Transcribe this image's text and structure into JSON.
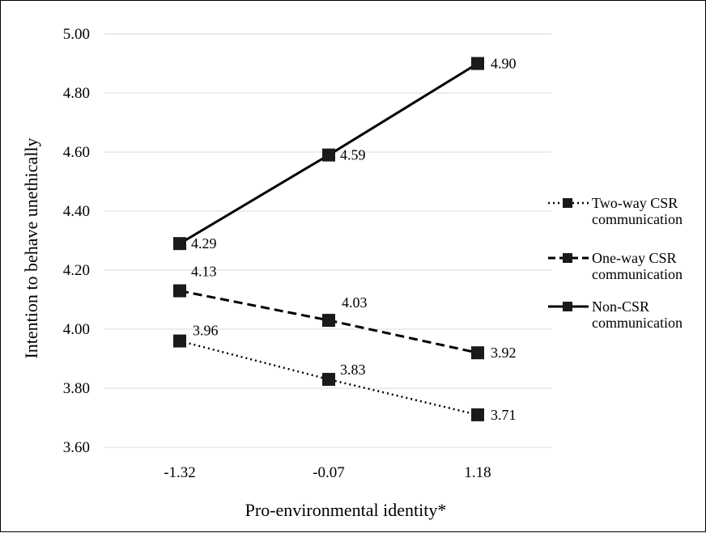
{
  "chart_data": {
    "type": "line",
    "title": "",
    "xlabel": "Pro-environmental identity*",
    "ylabel": "Intention to behave unethically",
    "x": [
      "-1.32",
      "-0.07",
      "1.18"
    ],
    "ylim": [
      3.6,
      5.0
    ],
    "yticks": [
      "3.60",
      "3.80",
      "4.00",
      "4.20",
      "4.40",
      "4.60",
      "4.80",
      "5.00"
    ],
    "grid": true,
    "legend": "right",
    "series": [
      {
        "name_lines": [
          "Two-way CSR",
          "communication"
        ],
        "style": "dotted",
        "values": [
          3.96,
          3.83,
          3.71
        ],
        "labels": [
          "3.96",
          "3.83",
          "3.71"
        ]
      },
      {
        "name_lines": [
          "One-way CSR",
          "communication"
        ],
        "style": "dashed",
        "values": [
          4.13,
          4.03,
          3.92
        ],
        "labels": [
          "4.13",
          "4.03",
          "3.92"
        ]
      },
      {
        "name_lines": [
          "Non-CSR",
          "communication"
        ],
        "style": "solid",
        "values": [
          4.29,
          4.59,
          4.9
        ],
        "labels": [
          "4.29",
          "4.59",
          "4.90"
        ]
      }
    ]
  }
}
